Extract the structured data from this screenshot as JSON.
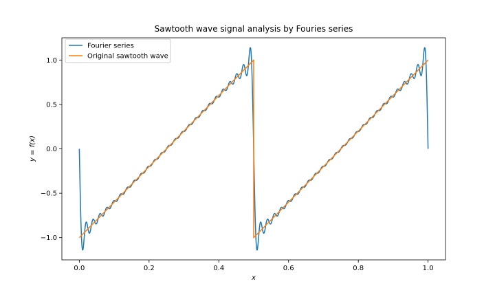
{
  "chart_data": {
    "type": "line",
    "title": "Sawtooth wave signal analysis by Fouries series",
    "xlabel": "x",
    "ylabel": "y = f(x)",
    "xlim": [
      -0.05,
      1.05
    ],
    "ylim": [
      -1.25,
      1.25
    ],
    "xticks": [
      0.0,
      0.2,
      0.4,
      0.6,
      0.8,
      1.0
    ],
    "xtick_labels": [
      "0.0",
      "0.2",
      "0.4",
      "0.6",
      "0.8",
      "1.0"
    ],
    "yticks": [
      -1.0,
      -0.5,
      0.0,
      0.5,
      1.0
    ],
    "ytick_labels": [
      "−1.0",
      "−0.5",
      "0.0",
      "0.5",
      "1.0"
    ],
    "grid": false,
    "legend_position": "top-left",
    "series": [
      {
        "name": "Fourier series",
        "color": "#1f77b4",
        "kind": "fourier_sawtooth",
        "period": 0.5,
        "harmonics": 25
      },
      {
        "name": "Original sawtooth wave",
        "color": "#ff7f0e",
        "points": [
          [
            0.0,
            -1.0
          ],
          [
            0.5,
            1.0
          ],
          [
            0.5,
            -1.0
          ],
          [
            1.0,
            1.0
          ]
        ]
      }
    ]
  }
}
